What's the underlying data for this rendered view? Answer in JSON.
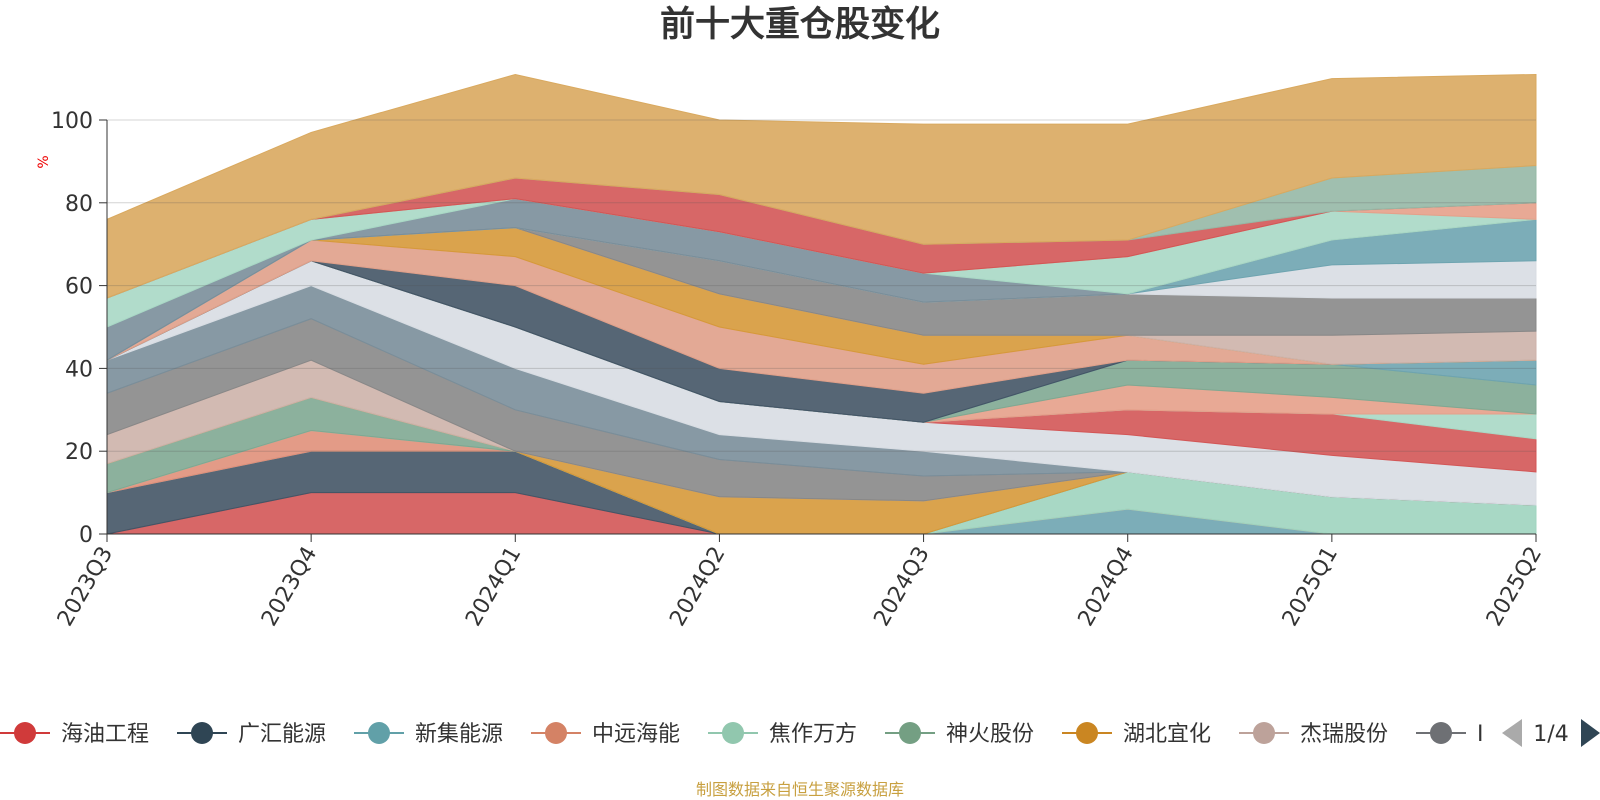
{
  "chart_data": {
    "type": "area",
    "title": "前十大重仓股变化",
    "ylabel": "%",
    "ylim": [
      0,
      100
    ],
    "yticks": [
      0,
      20,
      40,
      60,
      80,
      100
    ],
    "x": [
      "2023Q3",
      "2023Q4",
      "2024Q1",
      "2024Q2",
      "2024Q3",
      "2024Q4",
      "2025Q1",
      "2025Q2"
    ],
    "grid": true,
    "series": [
      {
        "name": "海油工程",
        "color": "#d35656",
        "values": [
          0,
          10,
          10,
          0,
          0,
          0,
          0,
          0
        ]
      },
      {
        "name": "广汇能源",
        "color": "#445566",
        "values": [
          10,
          10,
          10,
          0,
          0,
          0,
          0,
          0
        ]
      },
      {
        "name": "新集能源",
        "color": "#6ea4b0",
        "values": [
          0,
          0,
          0,
          0,
          0,
          6,
          0,
          0
        ]
      },
      {
        "name": "中远海能",
        "color": "#e0907a",
        "values": [
          0,
          5,
          0,
          0,
          0,
          0,
          0,
          0
        ]
      },
      {
        "name": "焦作万方",
        "color": "#9fd4bf",
        "values": [
          0,
          0,
          0,
          0,
          0,
          9,
          9,
          7
        ]
      },
      {
        "name": "神火股份",
        "color": "#7fa892",
        "values": [
          7,
          8,
          0,
          0,
          0,
          0,
          0,
          0
        ]
      },
      {
        "name": "湖北宜化",
        "color": "#d6993a",
        "values": [
          0,
          0,
          0,
          9,
          8,
          0,
          0,
          0
        ]
      },
      {
        "name": "杰瑞股份",
        "color": "#cdb2aa",
        "values": [
          7,
          9,
          0,
          0,
          0,
          0,
          0,
          0
        ]
      },
      {
        "name": "",
        "color": "#888888",
        "values": [
          10,
          10,
          10,
          9,
          6,
          0,
          0,
          0
        ]
      },
      {
        "name": "",
        "color": "#7a8e9a",
        "values": [
          8,
          8,
          10,
          6,
          6,
          0,
          0,
          0
        ]
      },
      {
        "name": "",
        "color": "#d8dde3",
        "values": [
          0,
          6,
          10,
          8,
          7,
          9,
          10,
          8
        ]
      },
      {
        "name": "",
        "color": "#d35656",
        "values": [
          0,
          0,
          0,
          0,
          0,
          6,
          10,
          8
        ]
      },
      {
        "name": "",
        "color": "#a9d8c5",
        "values": [
          0,
          0,
          0,
          0,
          0,
          0,
          0,
          6
        ]
      },
      {
        "name": "",
        "color": "#e5a08a",
        "values": [
          0,
          0,
          0,
          0,
          0,
          6,
          4,
          0
        ]
      },
      {
        "name": "",
        "color": "#7fa892",
        "values": [
          0,
          0,
          0,
          0,
          0,
          6,
          8,
          7
        ]
      },
      {
        "name": "",
        "color": "#6ea4b0",
        "values": [
          0,
          0,
          0,
          0,
          0,
          0,
          0,
          6
        ]
      },
      {
        "name": "",
        "color": "#445566",
        "values": [
          0,
          0,
          10,
          8,
          7,
          0,
          0,
          0
        ]
      },
      {
        "name": "",
        "color": "#e0a08a",
        "values": [
          0,
          5,
          7,
          10,
          7,
          6,
          0,
          0
        ]
      },
      {
        "name": "",
        "color": "#d6993a",
        "values": [
          0,
          0,
          7,
          8,
          7,
          0,
          0,
          0
        ]
      },
      {
        "name": "",
        "color": "#cdb2aa",
        "values": [
          0,
          0,
          0,
          0,
          0,
          0,
          7,
          7
        ]
      },
      {
        "name": "",
        "color": "#888888",
        "values": [
          0,
          0,
          0,
          8,
          8,
          10,
          9,
          8
        ]
      },
      {
        "name": "",
        "color": "#d8dde3",
        "values": [
          0,
          0,
          0,
          0,
          0,
          0,
          8,
          9
        ]
      },
      {
        "name": "",
        "color": "#6ea4b0",
        "values": [
          0,
          0,
          0,
          0,
          0,
          0,
          6,
          10
        ]
      },
      {
        "name": "",
        "color": "#7a8e9a",
        "values": [
          8,
          0,
          7,
          7,
          7,
          0,
          0,
          0
        ]
      },
      {
        "name": "",
        "color": "#a9d8c5",
        "values": [
          7,
          5,
          0,
          0,
          0,
          9,
          7,
          0
        ]
      },
      {
        "name": "",
        "color": "#e5a08a",
        "values": [
          0,
          0,
          0,
          0,
          0,
          0,
          0,
          4
        ]
      },
      {
        "name": "",
        "color": "#d35656",
        "values": [
          0,
          0,
          5,
          9,
          7,
          4,
          0,
          0
        ]
      },
      {
        "name": "",
        "color": "#96b8a6",
        "values": [
          0,
          0,
          0,
          0,
          0,
          0,
          8,
          9
        ]
      },
      {
        "name": "",
        "color": "#d9a95f",
        "values": [
          19,
          21,
          25,
          18,
          29,
          28,
          24,
          22
        ]
      }
    ]
  },
  "legend": {
    "items": [
      {
        "label": "海油工程",
        "color": "#d03a3a"
      },
      {
        "label": "广汇能源",
        "color": "#2f4554"
      },
      {
        "label": "新集能源",
        "color": "#61a0a8"
      },
      {
        "label": "中远海能",
        "color": "#d48265"
      },
      {
        "label": "焦作万方",
        "color": "#91c7ae"
      },
      {
        "label": "神火股份",
        "color": "#749f83"
      },
      {
        "label": "湖北宜化",
        "color": "#ca8622"
      },
      {
        "label": "杰瑞股份",
        "color": "#bda29a"
      },
      {
        "label": "Ⅰ",
        "color": "#6e7074"
      }
    ],
    "page": "1/4"
  },
  "footer": {
    "source": "制图数据来自恒生聚源数据库"
  }
}
